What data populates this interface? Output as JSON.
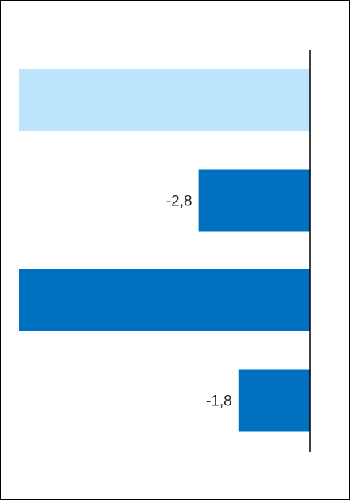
{
  "chart_data": {
    "type": "bar",
    "orientation": "horizontal",
    "title": "",
    "xlabel": "",
    "ylabel": "",
    "xlim": [
      -7.3,
      0
    ],
    "grid": false,
    "legend": "none",
    "bars": [
      {
        "value": -7.3,
        "label": "",
        "color": "#bde5fb"
      },
      {
        "value": -2.8,
        "label": "-2,8",
        "color": "#0070c0"
      },
      {
        "value": -7.3,
        "label": "",
        "color": "#0070c0"
      },
      {
        "value": -1.8,
        "label": "-1,8",
        "color": "#0070c0"
      }
    ]
  }
}
